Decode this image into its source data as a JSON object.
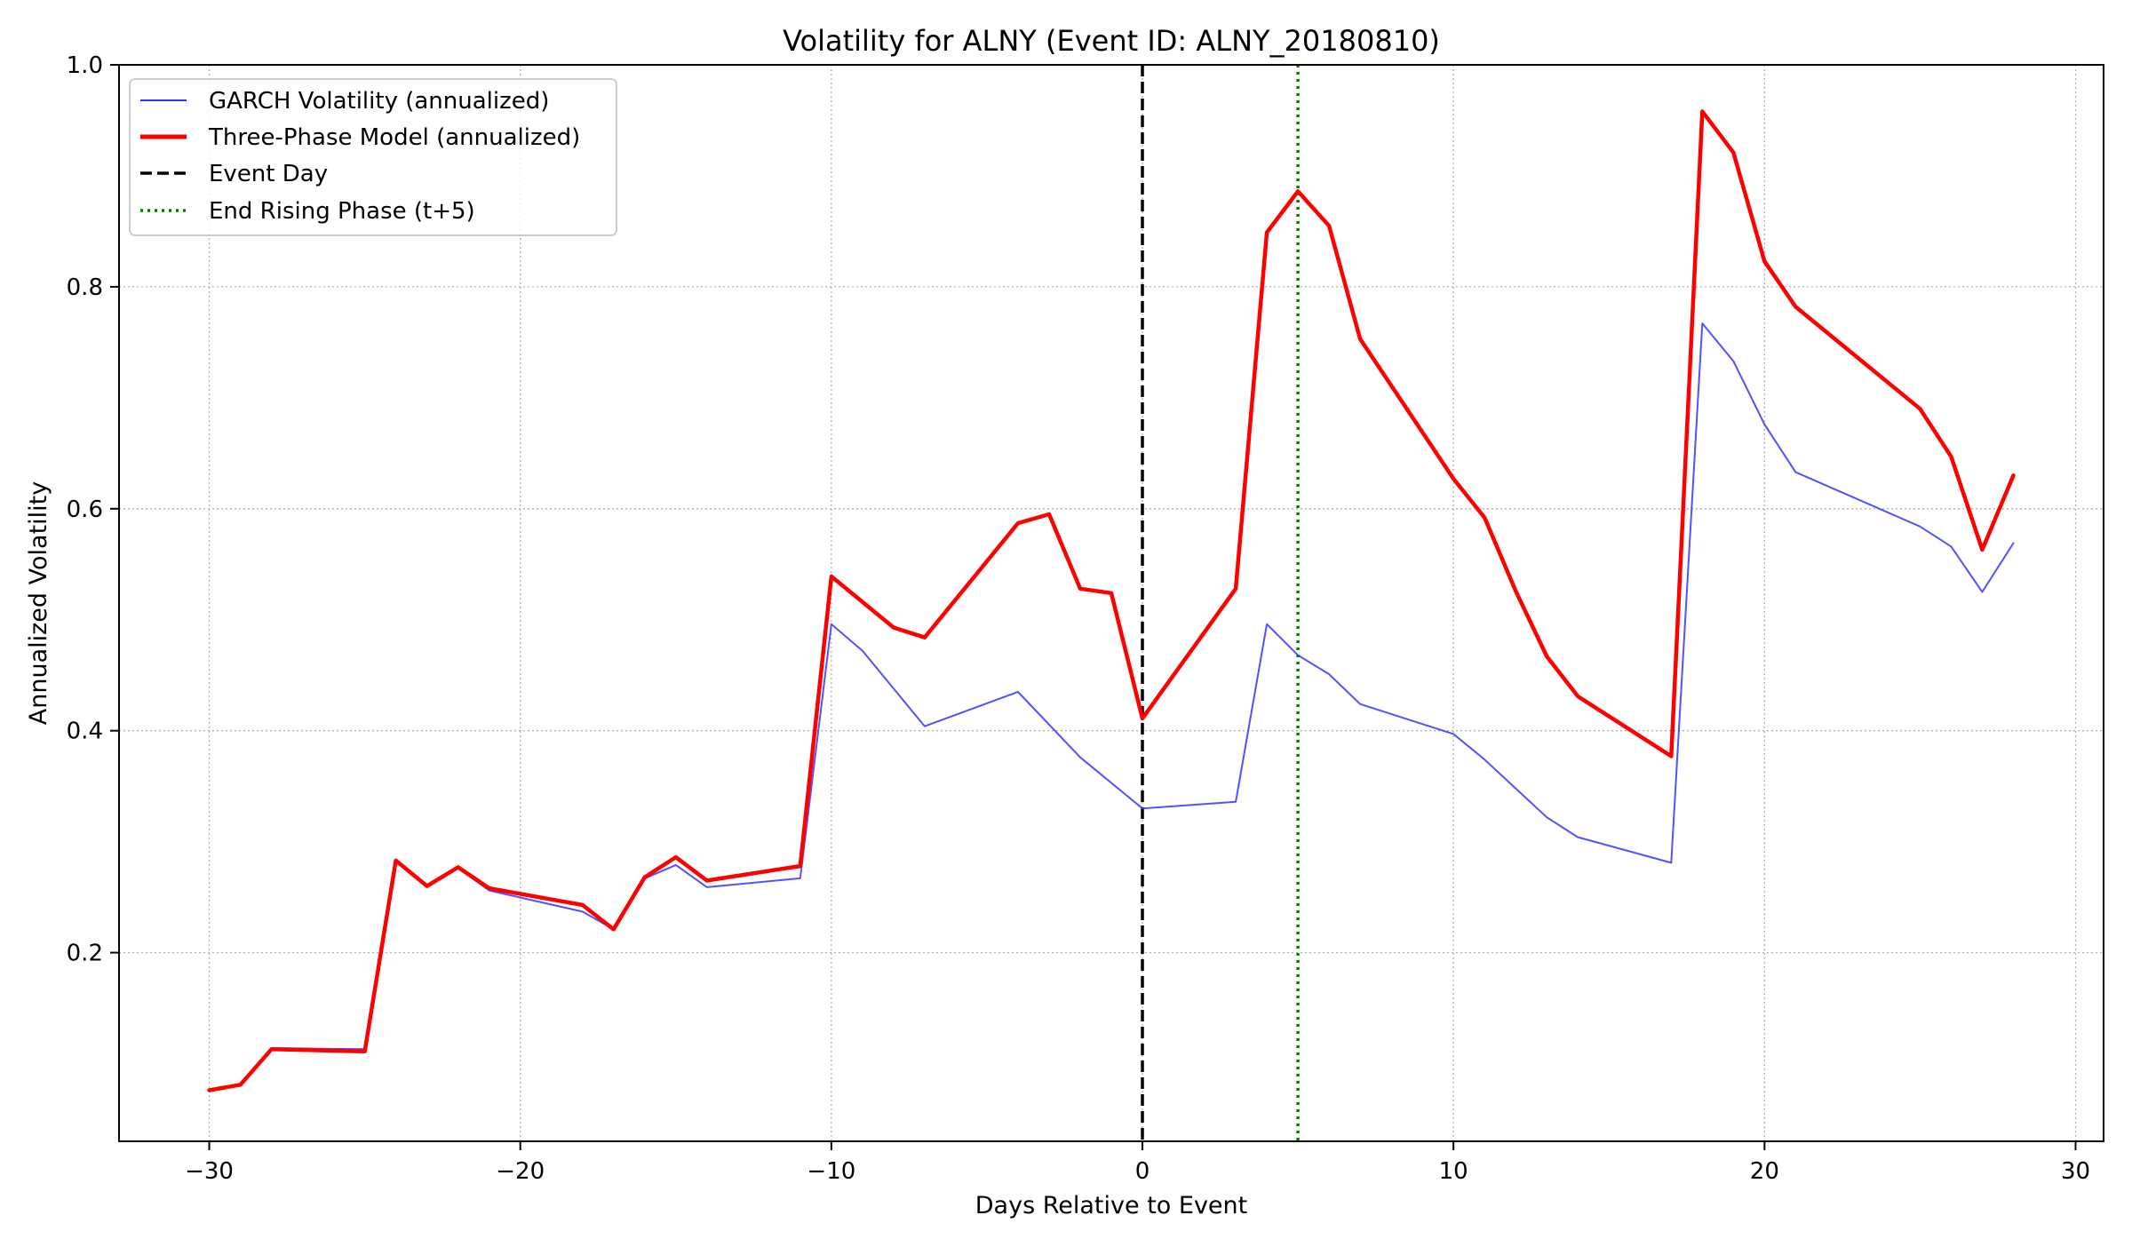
{
  "chart_data": {
    "type": "line",
    "title": "Volatility for ALNY (Event ID: ALNY_20180810)",
    "xlabel": "Days Relative to Event",
    "ylabel": "Annualized Volatility",
    "xlim": [
      -32.9,
      30.9
    ],
    "ylim": [
      0.03,
      1.0
    ],
    "xticks": [
      -30,
      -20,
      -10,
      0,
      10,
      20,
      30
    ],
    "xtick_labels": [
      "−30",
      "−20",
      "−10",
      "0",
      "10",
      "20",
      "30"
    ],
    "yticks": [
      0.2,
      0.4,
      0.6,
      0.8,
      1.0
    ],
    "ytick_labels": [
      "0.2",
      "0.4",
      "0.6",
      "0.8",
      "1.0"
    ],
    "grid": true,
    "legend_position": "top-left",
    "series": [
      {
        "name": "GARCH Volatility (annualized)",
        "color": "#3333ff",
        "style": "solid-thin",
        "points": [
          [
            -30,
            0.076
          ],
          [
            -29,
            0.081
          ],
          [
            -28,
            0.114
          ],
          [
            -25,
            0.113
          ],
          [
            -24,
            0.282
          ],
          [
            -23,
            0.259
          ],
          [
            -22,
            0.276
          ],
          [
            -21,
            0.256
          ],
          [
            -18,
            0.237
          ],
          [
            -17,
            0.221
          ],
          [
            -16,
            0.267
          ],
          [
            -15,
            0.279
          ],
          [
            -14,
            0.259
          ],
          [
            -11,
            0.267
          ],
          [
            -10,
            0.496
          ],
          [
            -9,
            0.472
          ],
          [
            -7,
            0.404
          ],
          [
            -4,
            0.435
          ],
          [
            -2,
            0.376
          ],
          [
            0,
            0.33
          ],
          [
            3,
            0.336
          ],
          [
            4,
            0.496
          ],
          [
            5,
            0.468
          ],
          [
            6,
            0.451
          ],
          [
            7,
            0.424
          ],
          [
            10,
            0.397
          ],
          [
            11,
            0.374
          ],
          [
            13,
            0.322
          ],
          [
            14,
            0.304
          ],
          [
            17,
            0.281
          ],
          [
            18,
            0.767
          ],
          [
            19,
            0.733
          ],
          [
            20,
            0.676
          ],
          [
            21,
            0.633
          ],
          [
            25,
            0.584
          ],
          [
            26,
            0.566
          ],
          [
            27,
            0.525
          ],
          [
            28,
            0.569
          ]
        ]
      },
      {
        "name": "Three-Phase Model (annualized)",
        "color": "#ff0000",
        "style": "solid-thick",
        "points": [
          [
            -30,
            0.076
          ],
          [
            -29,
            0.081
          ],
          [
            -28,
            0.113
          ],
          [
            -25,
            0.111
          ],
          [
            -24,
            0.283
          ],
          [
            -23,
            0.26
          ],
          [
            -22,
            0.277
          ],
          [
            -21,
            0.258
          ],
          [
            -18,
            0.243
          ],
          [
            -17,
            0.221
          ],
          [
            -16,
            0.268
          ],
          [
            -15,
            0.286
          ],
          [
            -14,
            0.265
          ],
          [
            -11,
            0.278
          ],
          [
            -10,
            0.539
          ],
          [
            -8,
            0.493
          ],
          [
            -7,
            0.484
          ],
          [
            -4,
            0.587
          ],
          [
            -3,
            0.595
          ],
          [
            -2,
            0.528
          ],
          [
            -1,
            0.524
          ],
          [
            0,
            0.411
          ],
          [
            3,
            0.528
          ],
          [
            4,
            0.849
          ],
          [
            5,
            0.886
          ],
          [
            6,
            0.855
          ],
          [
            7,
            0.753
          ],
          [
            10,
            0.627
          ],
          [
            11,
            0.592
          ],
          [
            12,
            0.526
          ],
          [
            13,
            0.467
          ],
          [
            14,
            0.431
          ],
          [
            17,
            0.377
          ],
          [
            18,
            0.958
          ],
          [
            19,
            0.921
          ],
          [
            20,
            0.823
          ],
          [
            21,
            0.782
          ],
          [
            25,
            0.69
          ],
          [
            26,
            0.647
          ],
          [
            27,
            0.563
          ],
          [
            28,
            0.63
          ]
        ]
      }
    ],
    "reference_lines": [
      {
        "name": "Event Day",
        "x": 0,
        "color": "#000000",
        "style": "dashed"
      },
      {
        "name": "End Rising Phase (t+5)",
        "x": 5,
        "color": "#008000",
        "style": "dotted"
      }
    ]
  }
}
